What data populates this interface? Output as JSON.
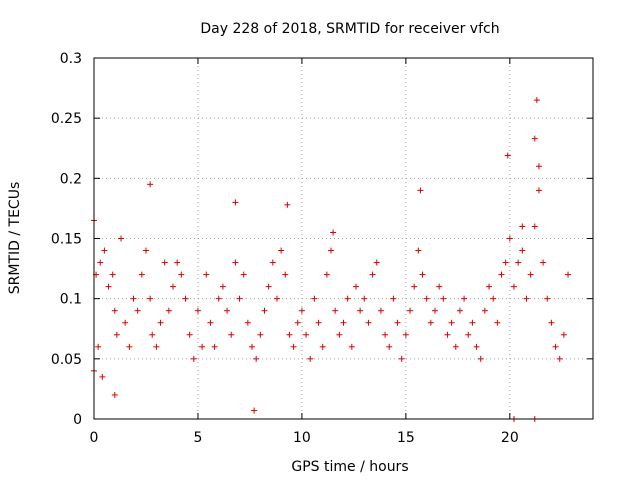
{
  "chart_data": {
    "type": "scatter",
    "title": "Day 228 of 2018, SRMTID for receiver vfch",
    "xlabel": "GPS time / hours",
    "ylabel": "SRMTID / TECUs",
    "xlim": [
      0,
      24
    ],
    "ylim": [
      0,
      0.3
    ],
    "x_ticks": [
      0,
      5,
      10,
      15,
      20
    ],
    "x_tick_labels": [
      "0",
      "5",
      "10",
      "15",
      "20"
    ],
    "y_ticks": [
      0,
      0.05,
      0.1,
      0.15,
      0.2,
      0.25,
      0.3
    ],
    "y_tick_labels": [
      "0",
      "0.05",
      "0.1",
      "0.15",
      "0.2",
      "0.25",
      "0.3"
    ],
    "grid": true,
    "marker": "+",
    "color": "#e00000",
    "series": [
      {
        "name": "SRMTID",
        "x": [
          0.0,
          0.1,
          0.2,
          0.3,
          0.5,
          0.7,
          0.9,
          1.0,
          1.1,
          1.3,
          1.5,
          1.7,
          1.9,
          2.1,
          2.3,
          2.5,
          2.7,
          2.8,
          3.0,
          3.2,
          3.4,
          3.6,
          3.8,
          4.0,
          4.2,
          4.4,
          4.6,
          4.8,
          5.0,
          5.2,
          5.4,
          5.6,
          5.8,
          6.0,
          6.2,
          6.4,
          6.6,
          6.8,
          7.0,
          7.2,
          7.4,
          7.6,
          7.8,
          8.0,
          8.2,
          8.4,
          8.6,
          8.8,
          9.0,
          9.2,
          9.4,
          9.6,
          9.8,
          10.0,
          10.2,
          10.4,
          10.6,
          10.8,
          11.0,
          11.2,
          11.4,
          11.6,
          11.8,
          12.0,
          12.2,
          12.4,
          12.6,
          12.8,
          13.0,
          13.2,
          13.4,
          13.6,
          13.8,
          14.0,
          14.2,
          14.4,
          14.6,
          14.8,
          15.0,
          15.2,
          15.4,
          15.6,
          15.8,
          16.0,
          16.2,
          16.4,
          16.6,
          16.8,
          17.0,
          17.2,
          17.4,
          17.6,
          17.8,
          18.0,
          18.2,
          18.4,
          18.6,
          18.8,
          19.0,
          19.2,
          19.4,
          19.6,
          19.8,
          20.0,
          20.2,
          20.4,
          20.6,
          20.8,
          21.0,
          21.2,
          21.4,
          21.6,
          21.8,
          22.0,
          22.2,
          22.4,
          22.6,
          22.8,
          0.0,
          0.4,
          1.0,
          2.7,
          6.8,
          7.7,
          9.3,
          11.5,
          15.7,
          19.9,
          20.6,
          21.2,
          21.3,
          21.4,
          20.2,
          21.2
        ],
        "y": [
          0.165,
          0.12,
          0.06,
          0.13,
          0.14,
          0.11,
          0.12,
          0.09,
          0.07,
          0.15,
          0.08,
          0.06,
          0.1,
          0.09,
          0.12,
          0.14,
          0.1,
          0.07,
          0.06,
          0.08,
          0.13,
          0.09,
          0.11,
          0.13,
          0.12,
          0.1,
          0.07,
          0.05,
          0.09,
          0.06,
          0.12,
          0.08,
          0.06,
          0.1,
          0.11,
          0.09,
          0.07,
          0.13,
          0.1,
          0.12,
          0.08,
          0.06,
          0.05,
          0.07,
          0.09,
          0.11,
          0.13,
          0.1,
          0.14,
          0.12,
          0.07,
          0.06,
          0.08,
          0.09,
          0.07,
          0.05,
          0.1,
          0.08,
          0.06,
          0.12,
          0.14,
          0.09,
          0.07,
          0.08,
          0.1,
          0.06,
          0.11,
          0.09,
          0.1,
          0.08,
          0.12,
          0.13,
          0.09,
          0.07,
          0.06,
          0.1,
          0.08,
          0.05,
          0.07,
          0.09,
          0.11,
          0.14,
          0.12,
          0.1,
          0.08,
          0.09,
          0.11,
          0.1,
          0.07,
          0.08,
          0.06,
          0.09,
          0.1,
          0.07,
          0.08,
          0.06,
          0.05,
          0.09,
          0.11,
          0.1,
          0.08,
          0.12,
          0.13,
          0.15,
          0.11,
          0.13,
          0.14,
          0.1,
          0.12,
          0.16,
          0.19,
          0.13,
          0.1,
          0.08,
          0.06,
          0.05,
          0.07,
          0.12,
          0.04,
          0.035,
          0.02,
          0.195,
          0.18,
          0.007,
          0.178,
          0.155,
          0.19,
          0.219,
          0.16,
          0.233,
          0.265,
          0.21,
          0.0,
          0.0
        ]
      }
    ]
  }
}
